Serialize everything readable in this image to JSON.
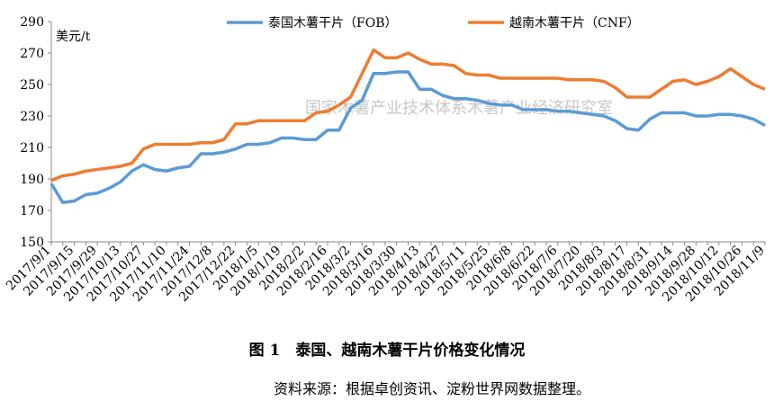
{
  "chart_data": {
    "type": "line",
    "y_label": "美元/t",
    "watermark": "国家木薯产业技术体系木薯产业经济研究室",
    "caption": "图 1　泰国、越南木薯干片价格变化情况",
    "source": "资料来源：根据卓创资讯、淀粉世界网数据整理。",
    "categories": [
      "2017/9/1",
      null,
      "2017/9/15",
      null,
      "2017/9/29",
      null,
      "2017/10/13",
      null,
      "2017/10/27",
      null,
      "2017/11/10",
      null,
      "2017/11/24",
      null,
      "2017/12/8",
      null,
      "2017/12/22",
      null,
      "2018/1/5",
      null,
      "2018/1/19",
      null,
      "2018/2/2",
      null,
      "2018/2/16",
      null,
      "2018/3/2",
      null,
      "2018/3/16",
      null,
      "2018/3/30",
      null,
      "2018/4/13",
      null,
      "2018/4/27",
      null,
      "2018/5/11",
      null,
      "2018/5/25",
      null,
      "2018/6/8",
      null,
      "2018/6/22",
      null,
      "2018/7/6",
      null,
      "2018/7/20",
      null,
      "2018/8/3",
      null,
      "2018/8/17",
      null,
      "2018/8/31",
      null,
      "2018/9/14",
      null,
      "2018/9/28",
      null,
      "2018/10/12",
      null,
      "2018/10/26",
      null,
      "2018/11/9"
    ],
    "series": [
      {
        "name": "泰国木薯干片（FOB）",
        "color": "#5b9bd5",
        "values": [
          187,
          175,
          176,
          180,
          181,
          184,
          188,
          195,
          199,
          196,
          195,
          197,
          198,
          206,
          206,
          207,
          209,
          212,
          212,
          213,
          216,
          216,
          215,
          215,
          221,
          221,
          235,
          240,
          257,
          257,
          258,
          258,
          247,
          247,
          243,
          241,
          241,
          240,
          238,
          237,
          237,
          234,
          234,
          234,
          233,
          233,
          232,
          231,
          230,
          227,
          222,
          221,
          228,
          232,
          232,
          232,
          230,
          230,
          231,
          231,
          230,
          228,
          224
        ]
      },
      {
        "name": "越南木薯干片（CNF）",
        "color": "#ed7d31",
        "values": [
          189,
          192,
          193,
          195,
          196,
          197,
          198,
          200,
          209,
          212,
          212,
          212,
          212,
          213,
          213,
          215,
          225,
          225,
          227,
          227,
          227,
          227,
          227,
          232,
          233,
          237,
          242,
          257,
          272,
          267,
          267,
          270,
          266,
          263,
          263,
          262,
          257,
          256,
          256,
          254,
          254,
          254,
          254,
          254,
          254,
          253,
          253,
          253,
          252,
          248,
          242,
          242,
          242,
          247,
          252,
          253,
          250,
          252,
          255,
          260,
          255,
          250,
          247
        ]
      }
    ],
    "ylim": [
      150,
      290
    ],
    "yticks": [
      150,
      170,
      190,
      210,
      230,
      250,
      270,
      290
    ]
  }
}
